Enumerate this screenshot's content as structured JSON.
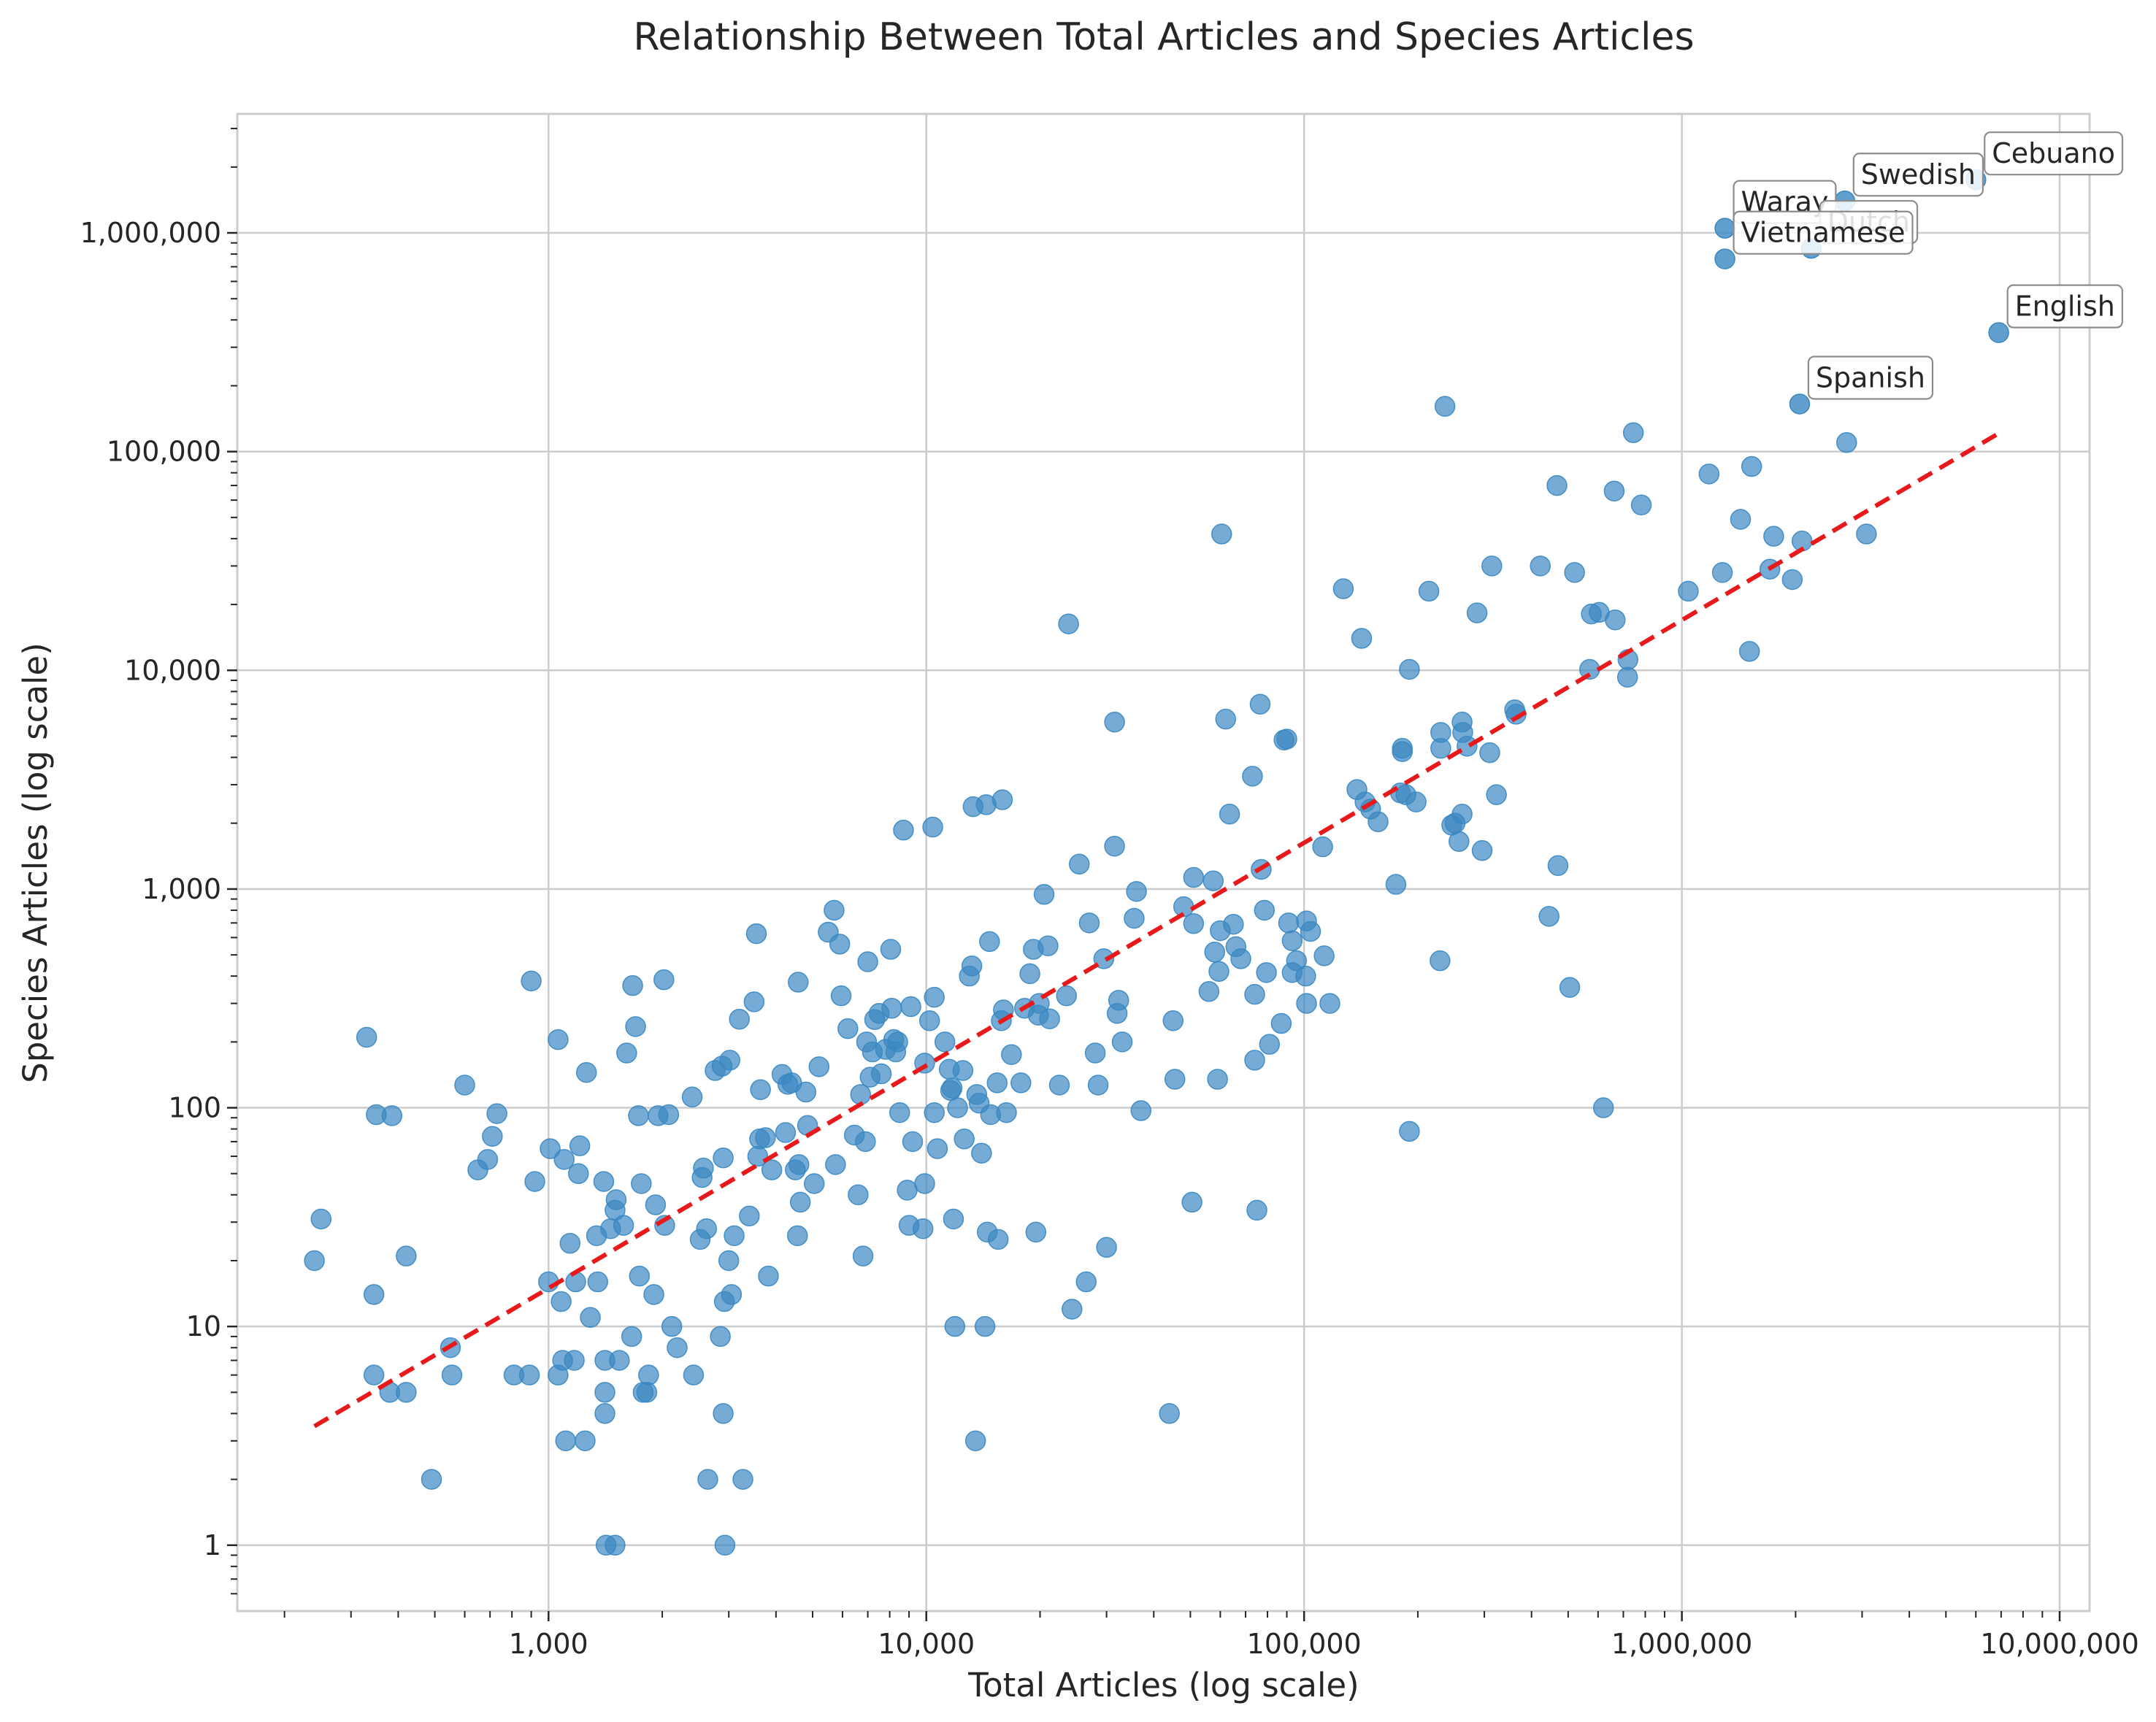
{
  "chart_data": {
    "type": "scatter",
    "title": "Relationship Between Total Articles and Species Articles",
    "xlabel": "Total Articles (log scale)",
    "ylabel": "Species Articles (log scale)",
    "x_scale": "log",
    "y_scale": "log",
    "xlim": [
      150,
      12000000
    ],
    "ylim": [
      0.5,
      3500000
    ],
    "x_ticks": [
      {
        "value": 1000,
        "label": "1,000"
      },
      {
        "value": 10000,
        "label": "10,000"
      },
      {
        "value": 100000,
        "label": "100,000"
      },
      {
        "value": 1000000,
        "label": "1,000,000"
      },
      {
        "value": 10000000,
        "label": "10,000,000"
      }
    ],
    "y_ticks": [
      {
        "value": 1,
        "label": "1"
      },
      {
        "value": 10,
        "label": "10"
      },
      {
        "value": 100,
        "label": "100"
      },
      {
        "value": 1000,
        "label": "1,000"
      },
      {
        "value": 10000,
        "label": "10,000"
      },
      {
        "value": 100000,
        "label": "100,000"
      },
      {
        "value": 1000000,
        "label": "1,000,000"
      }
    ],
    "grid": true,
    "point_color": "#3a87c2",
    "trend_color": "#e8191a",
    "trend_line": {
      "style": "dashed",
      "x_start": 240,
      "y_start": 3.5,
      "x_end": 7000000,
      "y_end": 123000
    },
    "annotations": [
      {
        "label": "Cebuano",
        "x": 6000000,
        "y": 1750000
      },
      {
        "label": "Swedish",
        "x": 2700000,
        "y": 1400000
      },
      {
        "label": "Waray",
        "x": 1300000,
        "y": 1050000
      },
      {
        "label": "Dutch",
        "x": 2200000,
        "y": 850000
      },
      {
        "label": "Vietnamese",
        "x": 1300000,
        "y": 760000
      },
      {
        "label": "English",
        "x": 6900000,
        "y": 350000
      },
      {
        "label": "Spanish",
        "x": 2050000,
        "y": 165000
      }
    ],
    "points": [
      [
        240,
        20
      ],
      [
        250,
        31
      ],
      [
        330,
        210
      ],
      [
        350,
        93
      ],
      [
        345,
        14
      ],
      [
        345,
        6
      ],
      [
        380,
        5
      ],
      [
        385,
        92
      ],
      [
        420,
        21
      ],
      [
        420,
        5
      ],
      [
        490,
        2
      ],
      [
        550,
        8
      ],
      [
        555,
        6
      ],
      [
        600,
        127
      ],
      [
        650,
        52
      ],
      [
        690,
        58
      ],
      [
        710,
        74
      ],
      [
        730,
        94
      ],
      [
        810,
        6
      ],
      [
        890,
        6
      ],
      [
        900,
        380
      ],
      [
        920,
        46
      ],
      [
        1000,
        16
      ],
      [
        1010,
        65
      ],
      [
        1060,
        205
      ],
      [
        1060,
        6
      ],
      [
        1080,
        13
      ],
      [
        1090,
        7
      ],
      [
        1100,
        58
      ],
      [
        1110,
        3
      ],
      [
        1140,
        24
      ],
      [
        1170,
        7
      ],
      [
        1180,
        16
      ],
      [
        1200,
        50
      ],
      [
        1210,
        67
      ],
      [
        1250,
        3
      ],
      [
        1260,
        145
      ],
      [
        1290,
        11
      ],
      [
        1340,
        26
      ],
      [
        1350,
        16
      ],
      [
        1400,
        46
      ],
      [
        1410,
        7
      ],
      [
        1410,
        4
      ],
      [
        1410,
        5
      ],
      [
        1420,
        1
      ],
      [
        1460,
        28
      ],
      [
        1500,
        34
      ],
      [
        1500,
        1
      ],
      [
        1510,
        38
      ],
      [
        1540,
        7
      ],
      [
        1580,
        29
      ],
      [
        1610,
        178
      ],
      [
        1660,
        9
      ],
      [
        1670,
        362
      ],
      [
        1700,
        235
      ],
      [
        1740,
        17
      ],
      [
        1730,
        92
      ],
      [
        1760,
        45
      ],
      [
        1780,
        5
      ],
      [
        1820,
        5
      ],
      [
        1840,
        6
      ],
      [
        1900,
        14
      ],
      [
        1920,
        36
      ],
      [
        1950,
        92
      ],
      [
        2020,
        385
      ],
      [
        2030,
        29
      ],
      [
        2080,
        93
      ],
      [
        2120,
        10
      ],
      [
        2190,
        8
      ],
      [
        2400,
        112
      ],
      [
        2420,
        6
      ],
      [
        2520,
        25
      ],
      [
        2550,
        48
      ],
      [
        2570,
        53
      ],
      [
        2620,
        28
      ],
      [
        2640,
        2
      ],
      [
        2760,
        148
      ],
      [
        2850,
        9
      ],
      [
        2880,
        155
      ],
      [
        2900,
        59
      ],
      [
        2900,
        4
      ],
      [
        2920,
        13
      ],
      [
        2930,
        1
      ],
      [
        3000,
        20
      ],
      [
        3020,
        165
      ],
      [
        3050,
        14
      ],
      [
        3100,
        26
      ],
      [
        3200,
        254
      ],
      [
        3270,
        2
      ],
      [
        3400,
        32
      ],
      [
        3500,
        305
      ],
      [
        3550,
        625
      ],
      [
        3580,
        60
      ],
      [
        3620,
        72
      ],
      [
        3640,
        121
      ],
      [
        3750,
        73
      ],
      [
        3820,
        17
      ],
      [
        3900,
        52
      ],
      [
        4150,
        142
      ],
      [
        4240,
        77
      ],
      [
        4300,
        128
      ],
      [
        4400,
        130
      ],
      [
        4500,
        52
      ],
      [
        4560,
        26
      ],
      [
        4580,
        375
      ],
      [
        4600,
        55
      ],
      [
        4640,
        37
      ],
      [
        4800,
        118
      ],
      [
        4850,
        83
      ],
      [
        5050,
        45
      ],
      [
        5200,
        154
      ],
      [
        5500,
        635
      ],
      [
        5700,
        800
      ],
      [
        5750,
        55
      ],
      [
        5900,
        560
      ],
      [
        5950,
        325
      ],
      [
        6200,
        230
      ],
      [
        6450,
        75
      ],
      [
        6600,
        40
      ],
      [
        6700,
        115
      ],
      [
        6800,
        21
      ],
      [
        6900,
        70
      ],
      [
        6950,
        200
      ],
      [
        7000,
        465
      ],
      [
        7100,
        138
      ],
      [
        7200,
        180
      ],
      [
        7300,
        253
      ],
      [
        7500,
        270
      ],
      [
        7600,
        143
      ],
      [
        7800,
        185
      ],
      [
        8050,
        530
      ],
      [
        8100,
        285
      ],
      [
        8200,
        205
      ],
      [
        8300,
        180
      ],
      [
        8400,
        200
      ],
      [
        8500,
        95
      ],
      [
        8700,
        1860
      ],
      [
        8900,
        42
      ],
      [
        9000,
        29
      ],
      [
        9100,
        290
      ],
      [
        9200,
        70
      ],
      [
        9800,
        28
      ],
      [
        9900,
        160
      ],
      [
        9900,
        45
      ],
      [
        10200,
        250
      ],
      [
        10400,
        1920
      ],
      [
        10500,
        95
      ],
      [
        10500,
        320
      ],
      [
        10700,
        65
      ],
      [
        11200,
        200
      ],
      [
        11500,
        150
      ],
      [
        11600,
        120
      ],
      [
        11700,
        123
      ],
      [
        11800,
        31
      ],
      [
        11900,
        10
      ],
      [
        12100,
        100
      ],
      [
        12500,
        148
      ],
      [
        12600,
        72
      ],
      [
        13000,
        400
      ],
      [
        13200,
        445
      ],
      [
        13300,
        2380
      ],
      [
        13500,
        3
      ],
      [
        13600,
        115
      ],
      [
        13800,
        105
      ],
      [
        14000,
        62
      ],
      [
        14300,
        10
      ],
      [
        14400,
        2430
      ],
      [
        14500,
        27
      ],
      [
        14700,
        575
      ],
      [
        14800,
        93
      ],
      [
        15400,
        130
      ],
      [
        15500,
        25
      ],
      [
        15800,
        250
      ],
      [
        15900,
        2560
      ],
      [
        16000,
        280
      ],
      [
        16300,
        95
      ],
      [
        16800,
        175
      ],
      [
        17800,
        130
      ],
      [
        18200,
        285
      ],
      [
        18800,
        410
      ],
      [
        19200,
        530
      ],
      [
        19500,
        27
      ],
      [
        19800,
        265
      ],
      [
        19900,
        300
      ],
      [
        20500,
        945
      ],
      [
        21000,
        550
      ],
      [
        21200,
        255
      ],
      [
        22500,
        127
      ],
      [
        23500,
        325
      ],
      [
        23800,
        16300
      ],
      [
        24300,
        12
      ],
      [
        25400,
        1300
      ],
      [
        26500,
        16
      ],
      [
        27000,
        700
      ],
      [
        28000,
        178
      ],
      [
        28500,
        127
      ],
      [
        29500,
        480
      ],
      [
        30000,
        23
      ],
      [
        31500,
        5800
      ],
      [
        31500,
        1570
      ],
      [
        32000,
        270
      ],
      [
        32300,
        310
      ],
      [
        33000,
        200
      ],
      [
        35500,
        735
      ],
      [
        36000,
        975
      ],
      [
        37000,
        97
      ],
      [
        44000,
        4
      ],
      [
        45000,
        250
      ],
      [
        45500,
        135
      ],
      [
        48000,
        830
      ],
      [
        50500,
        37
      ],
      [
        51000,
        1130
      ],
      [
        51000,
        695
      ],
      [
        56000,
        340
      ],
      [
        57500,
        1090
      ],
      [
        58000,
        515
      ],
      [
        59000,
        135
      ],
      [
        59500,
        420
      ],
      [
        60000,
        645
      ],
      [
        60500,
        42000
      ],
      [
        62000,
        5980
      ],
      [
        63500,
        2200
      ],
      [
        65000,
        690
      ],
      [
        66000,
        545
      ],
      [
        68000,
        480
      ],
      [
        73000,
        3280
      ],
      [
        74000,
        330
      ],
      [
        74000,
        165
      ],
      [
        75000,
        34
      ],
      [
        76500,
        7000
      ],
      [
        77000,
        1230
      ],
      [
        78500,
        800
      ],
      [
        79500,
        415
      ],
      [
        81000,
        195
      ],
      [
        87000,
        243
      ],
      [
        88500,
        4800
      ],
      [
        90000,
        4850
      ],
      [
        91000,
        700
      ],
      [
        93000,
        580
      ],
      [
        93000,
        415
      ],
      [
        95500,
        470
      ],
      [
        101000,
        400
      ],
      [
        101500,
        300
      ],
      [
        101500,
        715
      ],
      [
        104000,
        640
      ],
      [
        112000,
        1560
      ],
      [
        113000,
        495
      ],
      [
        117000,
        300
      ],
      [
        127000,
        23600
      ],
      [
        138000,
        2850
      ],
      [
        142000,
        14000
      ],
      [
        145000,
        2500
      ],
      [
        150000,
        2320
      ],
      [
        157000,
        2030
      ],
      [
        175000,
        1050
      ],
      [
        180000,
        2750
      ],
      [
        182000,
        4400
      ],
      [
        182000,
        4250
      ],
      [
        186000,
        2700
      ],
      [
        190000,
        10100
      ],
      [
        190000,
        78
      ],
      [
        198000,
        2500
      ],
      [
        214000,
        23000
      ],
      [
        229000,
        470
      ],
      [
        230000,
        5200
      ],
      [
        230000,
        4400
      ],
      [
        236000,
        161000
      ],
      [
        246000,
        1960
      ],
      [
        251000,
        2000
      ],
      [
        257000,
        1650
      ],
      [
        262000,
        2200
      ],
      [
        262000,
        5800
      ],
      [
        263000,
        5200
      ],
      [
        270000,
        4500
      ],
      [
        287000,
        18300
      ],
      [
        296000,
        1500
      ],
      [
        310000,
        4200
      ],
      [
        314000,
        30000
      ],
      [
        323000,
        2700
      ],
      [
        361000,
        6600
      ],
      [
        364000,
        6300
      ],
      [
        422000,
        30000
      ],
      [
        445000,
        750
      ],
      [
        467000,
        70000
      ],
      [
        470000,
        1280
      ],
      [
        505000,
        355
      ],
      [
        520000,
        28000
      ],
      [
        570000,
        10100
      ],
      [
        576000,
        18100
      ],
      [
        604000,
        18400
      ],
      [
        620000,
        100
      ],
      [
        662000,
        66000
      ],
      [
        666000,
        17000
      ],
      [
        718000,
        9300
      ],
      [
        720000,
        11200
      ],
      [
        744000,
        122000
      ],
      [
        781000,
        57000
      ],
      [
        1040000,
        23000
      ],
      [
        1180000,
        79000
      ],
      [
        1280000,
        28000
      ],
      [
        1430000,
        49000
      ],
      [
        1510000,
        12200
      ],
      [
        1530000,
        85500
      ],
      [
        1710000,
        29000
      ],
      [
        1750000,
        41000
      ],
      [
        1960000,
        26000
      ],
      [
        2080000,
        39000
      ],
      [
        2730000,
        110000
      ],
      [
        3080000,
        42000
      ]
    ]
  }
}
